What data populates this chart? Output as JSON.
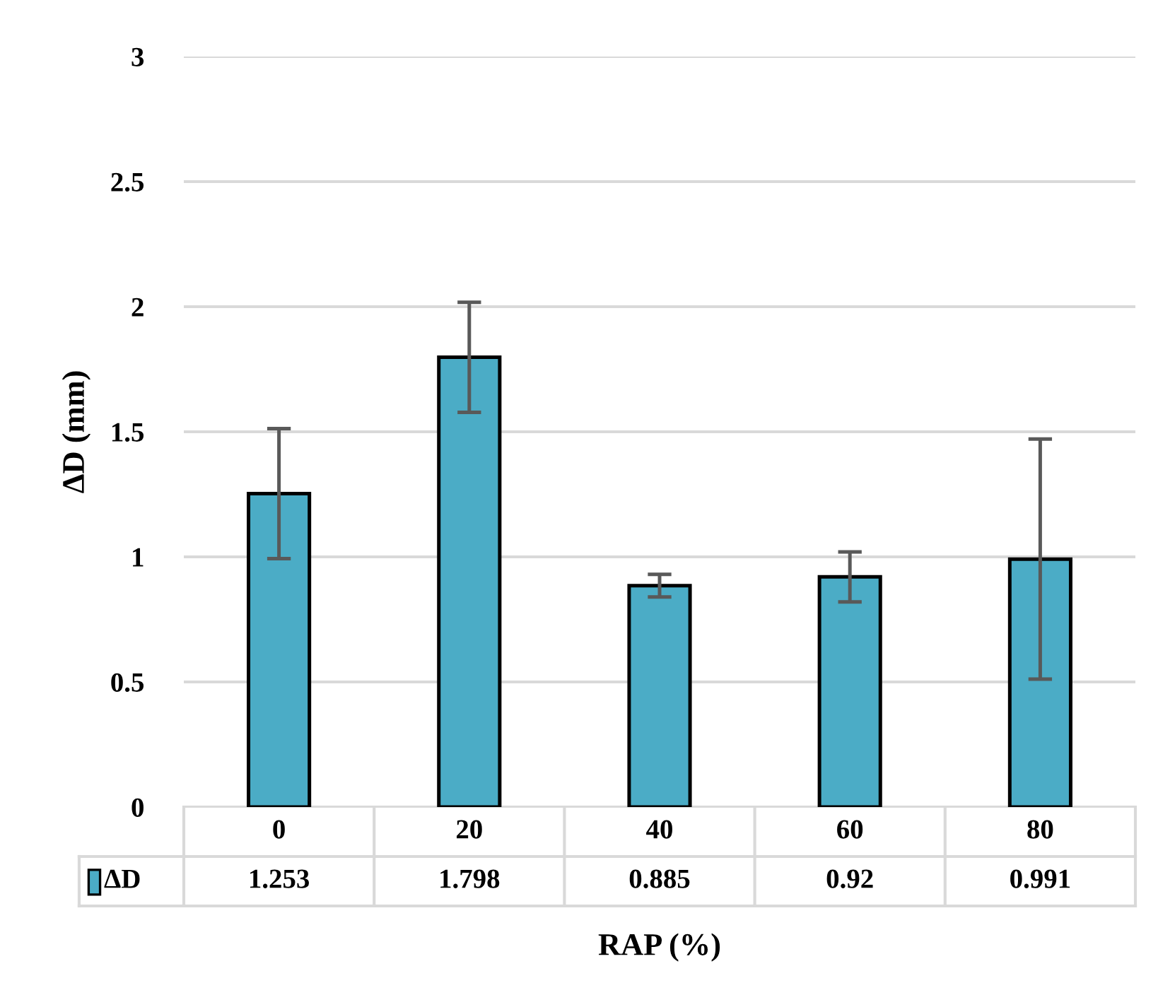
{
  "chart_data": {
    "type": "bar",
    "xlabel": "RAP (%)",
    "ylabel": "ΔD (mm)",
    "categories": [
      "0",
      "20",
      "40",
      "60",
      "80"
    ],
    "series": [
      {
        "name": "ΔD",
        "color": "#4bacc6",
        "values": [
          1.253,
          1.798,
          0.885,
          0.92,
          0.991
        ],
        "errors": [
          0.26,
          0.22,
          0.045,
          0.1,
          0.48
        ]
      }
    ],
    "ylim": [
      0,
      3
    ],
    "yticks": [
      0,
      0.5,
      1,
      1.5,
      2,
      2.5,
      3
    ],
    "grid": "y",
    "data_labels": true,
    "legend": "bottom"
  }
}
